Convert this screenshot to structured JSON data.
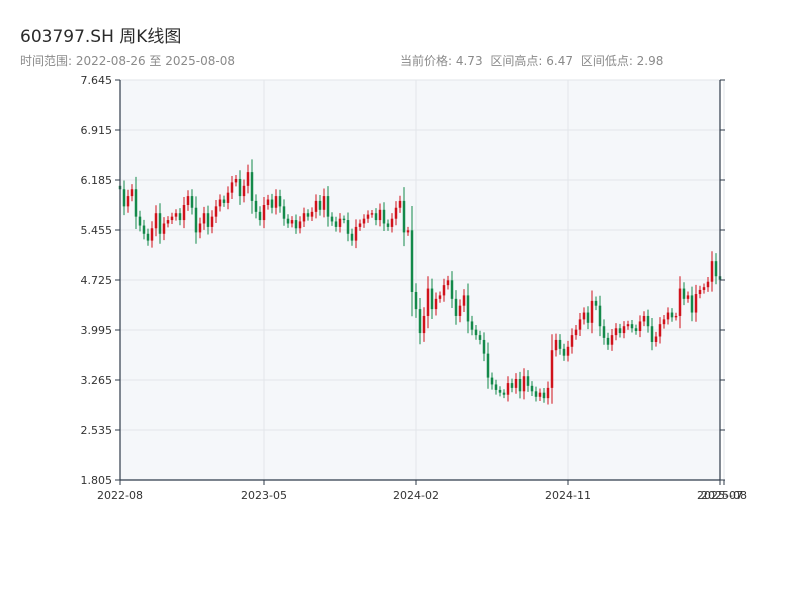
{
  "header": {
    "title": "603797.SH 周K线图",
    "subtitle": "时间范围: 2022-08-26 至 2025-08-08",
    "current_price": "当前价格: 4.73",
    "range_high": "区间高点: 6.47",
    "range_low": "区间低点: 2.98"
  },
  "colors": {
    "up": "#d0121b",
    "down": "#14894a",
    "plot_bg": "#f5f7fa",
    "grid": "#e2e5ea",
    "axis": "#2f3b4a"
  },
  "chart_data": {
    "type": "candlestick",
    "title": "603797.SH 周K线图",
    "ylim": [
      1.805,
      7.645
    ],
    "y_ticks": [
      "7.645",
      "6.915",
      "6.185",
      "5.455",
      "4.725",
      "3.995",
      "3.265",
      "2.535",
      "1.805"
    ],
    "x_tick_labels": [
      "2022-08",
      "2023-05",
      "2024-02",
      "2024-11",
      "2025-07",
      "2025-08"
    ],
    "x_tick_index": [
      0,
      36,
      74,
      112,
      150,
      151
    ],
    "grid": true,
    "closes": [
      6.05,
      5.8,
      5.95,
      6.05,
      5.65,
      5.52,
      5.4,
      5.3,
      5.48,
      5.7,
      5.4,
      5.55,
      5.6,
      5.65,
      5.7,
      5.6,
      5.82,
      5.95,
      5.78,
      5.42,
      5.55,
      5.7,
      5.5,
      5.65,
      5.8,
      5.9,
      5.85,
      6.0,
      6.15,
      6.2,
      5.95,
      6.1,
      6.3,
      5.88,
      5.72,
      5.6,
      5.82,
      5.9,
      5.78,
      5.95,
      5.8,
      5.62,
      5.55,
      5.6,
      5.48,
      5.58,
      5.7,
      5.65,
      5.72,
      5.88,
      5.75,
      5.95,
      5.65,
      5.58,
      5.5,
      5.62,
      5.6,
      5.4,
      5.3,
      5.5,
      5.55,
      5.62,
      5.68,
      5.7,
      5.6,
      5.75,
      5.55,
      5.5,
      5.62,
      5.78,
      5.88,
      5.42,
      5.45,
      4.55,
      4.3,
      3.95,
      4.2,
      4.6,
      4.3,
      4.45,
      4.5,
      4.65,
      4.72,
      4.45,
      4.2,
      4.35,
      4.5,
      4.12,
      4.0,
      3.92,
      3.85,
      3.65,
      3.3,
      3.2,
      3.12,
      3.08,
      3.05,
      3.22,
      3.15,
      3.28,
      3.1,
      3.32,
      3.18,
      3.1,
      3.02,
      3.08,
      3.0,
      3.15,
      3.7,
      3.85,
      3.72,
      3.62,
      3.75,
      3.92,
      4.0,
      4.15,
      4.25,
      4.1,
      4.42,
      4.35,
      4.05,
      3.88,
      3.78,
      3.92,
      4.02,
      3.95,
      4.05,
      4.08,
      4.02,
      3.98,
      4.12,
      4.2,
      4.05,
      3.82,
      3.9,
      4.08,
      4.15,
      4.25,
      4.18,
      4.2,
      4.6,
      4.45,
      4.5,
      4.25,
      4.52,
      4.58,
      4.62,
      4.7,
      5.0,
      4.78,
      4.73
    ],
    "ohlc_note": "weekly candles; up weeks red, down weeks green"
  }
}
